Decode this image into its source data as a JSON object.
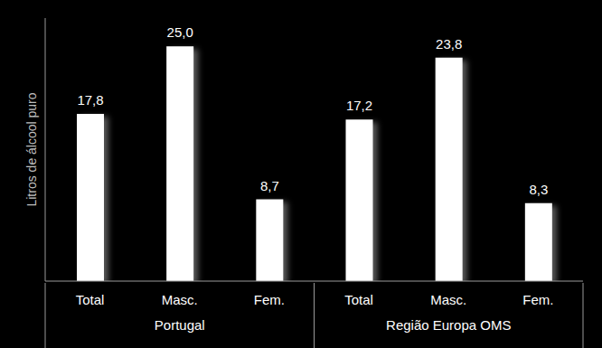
{
  "chart_data": {
    "type": "bar",
    "y_label": "Litros de álcool puro",
    "categories": [
      "Total",
      "Masc.",
      "Fem.",
      "Total",
      "Masc.",
      "Fem."
    ],
    "x_groups": [
      "Portugal",
      "Portugal",
      "Portugal",
      "Região Europa OMS",
      "Região Europa OMS",
      "Região Europa OMS"
    ],
    "values": [
      17.8,
      25.0,
      8.7,
      17.2,
      23.8,
      8.3
    ],
    "value_labels": [
      "17,8",
      "25,0",
      "8,7",
      "17,2",
      "23,8",
      "8,3"
    ],
    "color": "#ffffff",
    "ylim": [
      0,
      28
    ],
    "data_labels": true,
    "tick_labels": "x",
    "grid": false
  }
}
